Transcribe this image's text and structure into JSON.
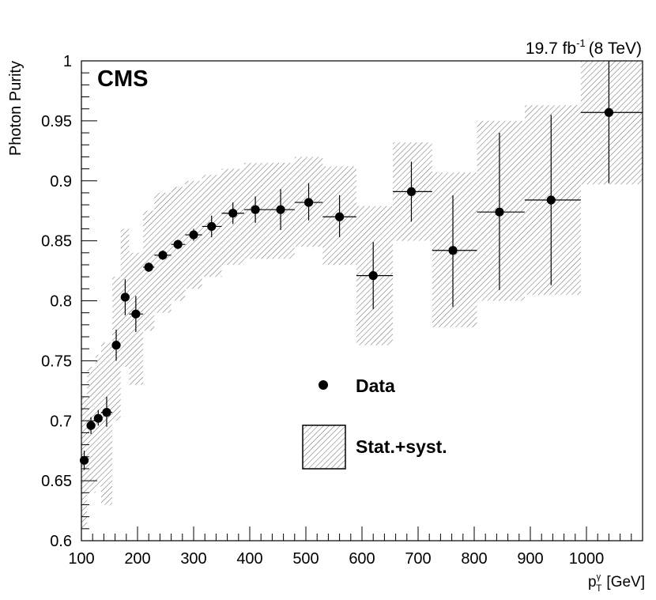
{
  "chart_data": {
    "type": "scatter",
    "experiment_label": "CMS",
    "lumi_label": {
      "value": "19.7 fb",
      "superscript": "-1",
      "energy": "(8 TeV)"
    },
    "ylabel": "Photon Purity",
    "xlabel": {
      "base": "p",
      "superscript": "γ",
      "subscript": "T",
      "unit": "[GeV]"
    },
    "xlim": [
      100,
      1100
    ],
    "ylim": [
      0.6,
      1.0
    ],
    "x_ticks": [
      100,
      200,
      300,
      400,
      500,
      600,
      700,
      800,
      900,
      1000
    ],
    "y_ticks": [
      0.6,
      0.65,
      0.7,
      0.75,
      0.8,
      0.85,
      0.9,
      0.95,
      1.0
    ],
    "y_tick_labels": [
      "0.6",
      "0.65",
      "0.7",
      "0.75",
      "0.8",
      "0.85",
      "0.9",
      "0.95",
      "1"
    ],
    "legend": {
      "position": "center",
      "entries": [
        {
          "label": "Data",
          "marker": "filled-circle"
        },
        {
          "label": "Stat.+syst.",
          "marker": "hatched-box"
        }
      ]
    },
    "series": [
      {
        "name": "Data",
        "points": [
          {
            "x": 105,
            "xlo": 100,
            "xhi": 110,
            "y": 0.667,
            "stat_lo": 0.659,
            "stat_hi": 0.675,
            "band_lo": 0.61,
            "band_hi": 0.72
          },
          {
            "x": 117,
            "xlo": 110,
            "xhi": 125,
            "y": 0.696,
            "stat_lo": 0.689,
            "stat_hi": 0.703,
            "band_lo": 0.64,
            "band_hi": 0.745
          },
          {
            "x": 130,
            "xlo": 125,
            "xhi": 135,
            "y": 0.702,
            "stat_lo": 0.696,
            "stat_hi": 0.709,
            "band_lo": 0.645,
            "band_hi": 0.755
          },
          {
            "x": 145,
            "xlo": 135,
            "xhi": 155,
            "y": 0.707,
            "stat_lo": 0.695,
            "stat_hi": 0.72,
            "band_lo": 0.63,
            "band_hi": 0.765
          },
          {
            "x": 162,
            "xlo": 155,
            "xhi": 170,
            "y": 0.763,
            "stat_lo": 0.75,
            "stat_hi": 0.776,
            "band_lo": 0.7,
            "band_hi": 0.82
          },
          {
            "x": 178,
            "xlo": 170,
            "xhi": 185,
            "y": 0.803,
            "stat_lo": 0.788,
            "stat_hi": 0.818,
            "band_lo": 0.745,
            "band_hi": 0.86
          },
          {
            "x": 197,
            "xlo": 185,
            "xhi": 210,
            "y": 0.789,
            "stat_lo": 0.774,
            "stat_hi": 0.804,
            "band_lo": 0.73,
            "band_hi": 0.84
          },
          {
            "x": 220,
            "xlo": 210,
            "xhi": 230,
            "y": 0.828,
            "stat_lo": 0.824,
            "stat_hi": 0.832,
            "band_lo": 0.775,
            "band_hi": 0.875
          },
          {
            "x": 245,
            "xlo": 230,
            "xhi": 260,
            "y": 0.838,
            "stat_lo": 0.834,
            "stat_hi": 0.842,
            "band_lo": 0.79,
            "band_hi": 0.89
          },
          {
            "x": 272,
            "xlo": 260,
            "xhi": 285,
            "y": 0.847,
            "stat_lo": 0.843,
            "stat_hi": 0.851,
            "band_lo": 0.8,
            "band_hi": 0.895
          },
          {
            "x": 300,
            "xlo": 285,
            "xhi": 315,
            "y": 0.855,
            "stat_lo": 0.85,
            "stat_hi": 0.86,
            "band_lo": 0.81,
            "band_hi": 0.9
          },
          {
            "x": 332,
            "xlo": 315,
            "xhi": 350,
            "y": 0.862,
            "stat_lo": 0.853,
            "stat_hi": 0.871,
            "band_lo": 0.82,
            "band_hi": 0.905
          },
          {
            "x": 370,
            "xlo": 350,
            "xhi": 390,
            "y": 0.873,
            "stat_lo": 0.864,
            "stat_hi": 0.882,
            "band_lo": 0.83,
            "band_hi": 0.91
          },
          {
            "x": 410,
            "xlo": 390,
            "xhi": 430,
            "y": 0.876,
            "stat_lo": 0.865,
            "stat_hi": 0.887,
            "band_lo": 0.835,
            "band_hi": 0.915
          },
          {
            "x": 455,
            "xlo": 430,
            "xhi": 480,
            "y": 0.876,
            "stat_lo": 0.859,
            "stat_hi": 0.893,
            "band_lo": 0.835,
            "band_hi": 0.915
          },
          {
            "x": 505,
            "xlo": 480,
            "xhi": 530,
            "y": 0.882,
            "stat_lo": 0.867,
            "stat_hi": 0.898,
            "band_lo": 0.845,
            "band_hi": 0.92
          },
          {
            "x": 560,
            "xlo": 530,
            "xhi": 590,
            "y": 0.87,
            "stat_lo": 0.853,
            "stat_hi": 0.888,
            "band_lo": 0.83,
            "band_hi": 0.912
          },
          {
            "x": 620,
            "xlo": 590,
            "xhi": 655,
            "y": 0.821,
            "stat_lo": 0.793,
            "stat_hi": 0.849,
            "band_lo": 0.763,
            "band_hi": 0.879
          },
          {
            "x": 688,
            "xlo": 655,
            "xhi": 725,
            "y": 0.891,
            "stat_lo": 0.866,
            "stat_hi": 0.916,
            "band_lo": 0.85,
            "band_hi": 0.932
          },
          {
            "x": 762,
            "xlo": 725,
            "xhi": 805,
            "y": 0.842,
            "stat_lo": 0.795,
            "stat_hi": 0.888,
            "band_lo": 0.778,
            "band_hi": 0.907
          },
          {
            "x": 845,
            "xlo": 805,
            "xhi": 890,
            "y": 0.874,
            "stat_lo": 0.809,
            "stat_hi": 0.94,
            "band_lo": 0.8,
            "band_hi": 0.95
          },
          {
            "x": 937,
            "xlo": 890,
            "xhi": 990,
            "y": 0.884,
            "stat_lo": 0.813,
            "stat_hi": 0.955,
            "band_lo": 0.805,
            "band_hi": 0.963
          },
          {
            "x": 1040,
            "xlo": 990,
            "xhi": 1100,
            "y": 0.957,
            "stat_lo": 0.898,
            "stat_hi": 1.0,
            "band_lo": 0.897,
            "band_hi": 1.0
          }
        ]
      }
    ]
  }
}
